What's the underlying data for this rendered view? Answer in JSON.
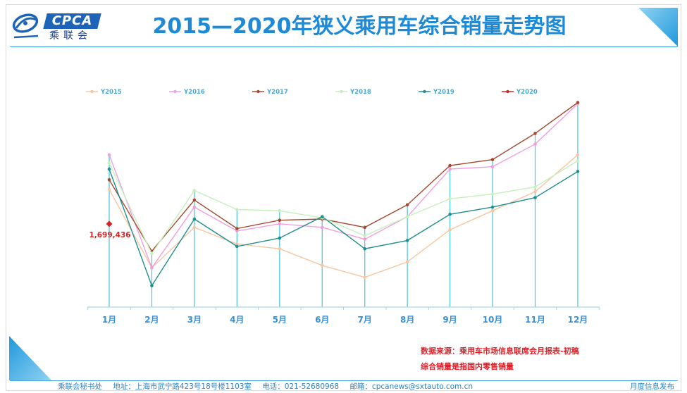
{
  "logo": {
    "brand": "CPCA",
    "name": "乘联会"
  },
  "chart_data": {
    "type": "line",
    "title": "2015—2020年狭义乘用车综合销量走势图",
    "categories": [
      "1月",
      "2月",
      "3月",
      "4月",
      "5月",
      "6月",
      "7月",
      "8月",
      "9月",
      "10月",
      "11月",
      "12月"
    ],
    "series": [
      {
        "name": "Y2015",
        "color": "#f6c6a0",
        "values": [
          1990000,
          1330000,
          1670000,
          1530000,
          1490000,
          1350000,
          1250000,
          1380000,
          1650000,
          1810000,
          1970000,
          2280000
        ]
      },
      {
        "name": "Y2016",
        "color": "#ef9fdf",
        "values": [
          2280000,
          1330000,
          1840000,
          1640000,
          1700000,
          1670000,
          1570000,
          1760000,
          2160000,
          2180000,
          2370000,
          2710000
        ]
      },
      {
        "name": "Y2017",
        "color": "#a34a2e",
        "values": [
          2070000,
          1470000,
          1900000,
          1660000,
          1730000,
          1740000,
          1670000,
          1860000,
          2190000,
          2240000,
          2460000,
          2720000
        ]
      },
      {
        "name": "Y2018",
        "color": "#c6efbe",
        "values": [
          2210000,
          1450000,
          1980000,
          1820000,
          1810000,
          1750000,
          1600000,
          1760000,
          1910000,
          1950000,
          2010000,
          2230000
        ]
      },
      {
        "name": "Y2019",
        "color": "#1f8e8e",
        "values": [
          2160000,
          1180000,
          1740000,
          1510000,
          1580000,
          1760000,
          1490000,
          1560000,
          1780000,
          1840000,
          1920000,
          2140000
        ]
      },
      {
        "name": "Y2020",
        "color": "#d42424",
        "values": [
          1699436,
          null,
          null,
          null,
          null,
          null,
          null,
          null,
          null,
          null,
          null,
          null
        ]
      }
    ],
    "data_labels": [
      {
        "series_index": 5,
        "category_index": 0,
        "value": 1699436,
        "text": "1,699,436"
      }
    ],
    "ylim": [
      1000000,
      2800000
    ],
    "y_axis_visible": false,
    "grid": false,
    "drop_lines": true,
    "legend": "top"
  },
  "notes": {
    "source": "数据来源：乘用车市场信息联席会月报表-初稿",
    "definition": "综合销量是指国内零售销量"
  },
  "footer": {
    "secretariat": "乘联会秘书处",
    "address": "地址：上海市武宁路423号18号楼1103室",
    "phone": "电话：021-52680968",
    "email": "邮箱：cpcanews@sxtauto.com.cn",
    "release": "月度信息发布"
  },
  "colors": {
    "title": "#1e8ad6",
    "accent": "#2aa3e0",
    "notes": "#d8232a",
    "footer": "#2d82c4",
    "drop_lines": "#58c6da",
    "axis": "#a9d6e2"
  }
}
